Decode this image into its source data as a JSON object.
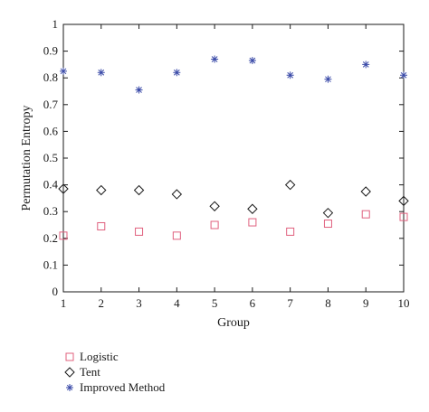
{
  "chart_data": {
    "type": "scatter",
    "title": "",
    "xlabel": "Group",
    "ylabel": "Permutation Entropy",
    "xlim": [
      1,
      10
    ],
    "ylim": [
      0,
      1
    ],
    "x": [
      1,
      2,
      3,
      4,
      5,
      6,
      7,
      8,
      9,
      10
    ],
    "x_ticks": [
      "1",
      "2",
      "3",
      "4",
      "5",
      "6",
      "7",
      "8",
      "9",
      "10"
    ],
    "y_ticks": [
      "0",
      "0.1",
      "0.2",
      "0.3",
      "0.4",
      "0.5",
      "0.6",
      "0.7",
      "0.8",
      "0.9",
      "1"
    ],
    "grid": false,
    "legend_position": "bottom-left outside",
    "series": [
      {
        "name": "Logistic",
        "marker": "square",
        "color": "#e0607e",
        "values": [
          0.21,
          0.245,
          0.225,
          0.21,
          0.25,
          0.26,
          0.225,
          0.255,
          0.29,
          0.28
        ]
      },
      {
        "name": "Tent",
        "marker": "diamond",
        "color": "#1a1a1a",
        "values": [
          0.385,
          0.38,
          0.38,
          0.365,
          0.32,
          0.31,
          0.4,
          0.295,
          0.375,
          0.34
        ]
      },
      {
        "name": "Improved Method",
        "marker": "star",
        "color": "#3a4aa8",
        "values": [
          0.825,
          0.82,
          0.755,
          0.82,
          0.87,
          0.865,
          0.81,
          0.795,
          0.85,
          0.81
        ]
      }
    ]
  }
}
